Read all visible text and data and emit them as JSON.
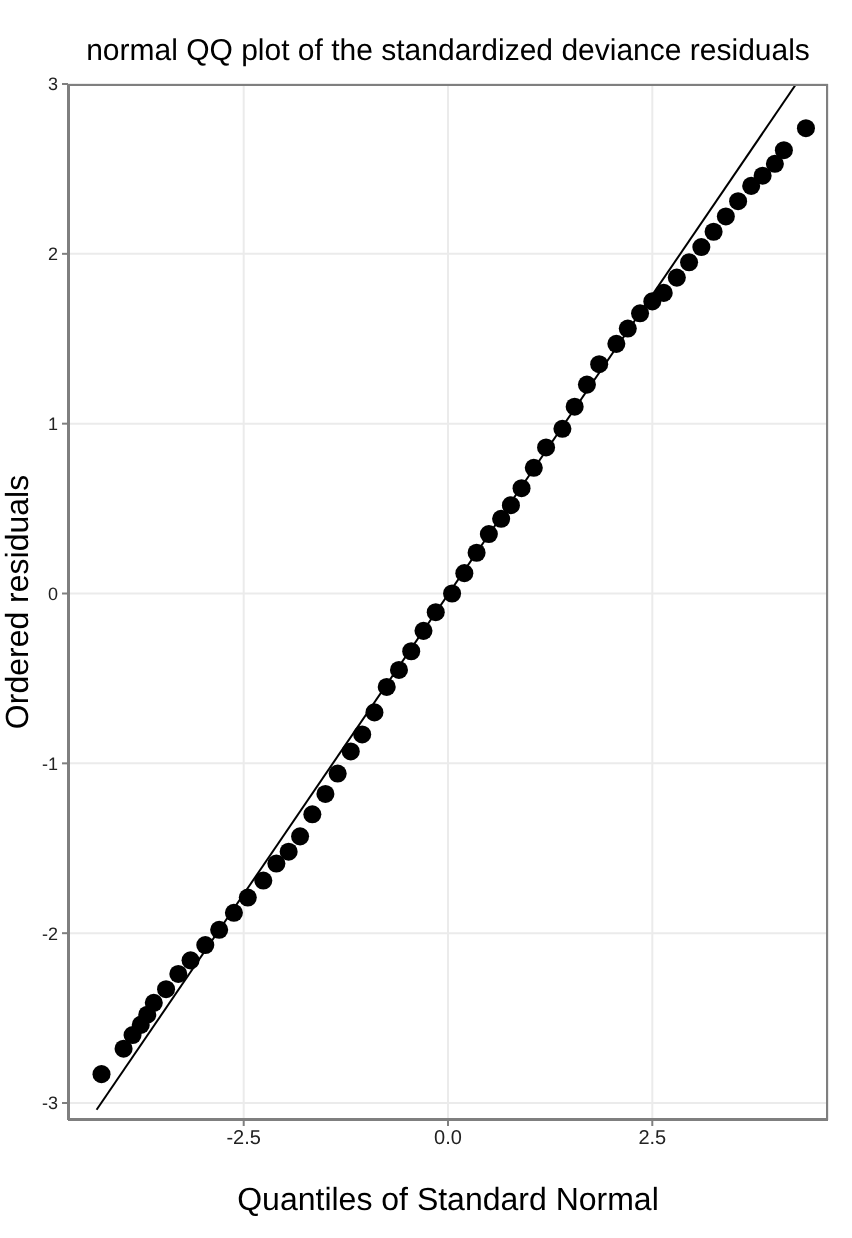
{
  "chart_data": {
    "type": "scatter",
    "title": "normal QQ plot of the standardized deviance residuals",
    "xlabel": "Quantiles of Standard Normal",
    "ylabel": "Ordered residuals",
    "xlim": [
      -4.65,
      4.65
    ],
    "ylim": [
      -3.1,
      3.0
    ],
    "xticks": [
      {
        "value": -2.5,
        "label": "-2.5"
      },
      {
        "value": 0,
        "label": "0.0"
      },
      {
        "value": 2.5,
        "label": "2.5"
      }
    ],
    "yticks": [
      -3,
      -2,
      -1,
      0,
      1,
      2,
      3
    ],
    "grid": true,
    "series": [
      {
        "marker": "circle",
        "color": "#000000",
        "x": [
          -4.24,
          -3.97,
          -3.86,
          -3.76,
          -3.68,
          -3.6,
          -3.45,
          -3.3,
          -3.15,
          -2.97,
          -2.8,
          -2.62,
          -2.45,
          -2.26,
          -2.1,
          -1.95,
          -1.81,
          -1.66,
          -1.5,
          -1.35,
          -1.19,
          -1.05,
          -0.9,
          -0.75,
          -0.6,
          -0.45,
          -0.3,
          -0.15,
          0.05,
          0.2,
          0.35,
          0.5,
          0.65,
          0.77,
          0.9,
          1.05,
          1.2,
          1.4,
          1.55,
          1.7,
          1.85,
          2.06,
          2.2,
          2.35,
          2.5,
          2.64,
          2.8,
          2.95,
          3.1,
          3.25,
          3.4,
          3.55,
          3.71,
          3.85,
          4.0,
          4.11,
          4.38
        ],
        "values": [
          -2.83,
          -2.68,
          -2.6,
          -2.54,
          -2.48,
          -2.41,
          -2.33,
          -2.24,
          -2.16,
          -2.07,
          -1.98,
          -1.88,
          -1.79,
          -1.69,
          -1.59,
          -1.52,
          -1.43,
          -1.3,
          -1.18,
          -1.06,
          -0.93,
          -0.83,
          -0.7,
          -0.55,
          -0.45,
          -0.34,
          -0.22,
          -0.11,
          0.0,
          0.12,
          0.24,
          0.35,
          0.44,
          0.52,
          0.62,
          0.74,
          0.86,
          0.97,
          1.1,
          1.23,
          1.35,
          1.47,
          1.56,
          1.65,
          1.72,
          1.77,
          1.86,
          1.95,
          2.04,
          2.13,
          2.22,
          2.31,
          2.4,
          2.46,
          2.53,
          2.61,
          2.74
        ]
      },
      {
        "type": "line",
        "color": "#000000",
        "x": [
          -4.3,
          4.26
        ],
        "values": [
          -3.04,
          3.0
        ]
      }
    ]
  }
}
